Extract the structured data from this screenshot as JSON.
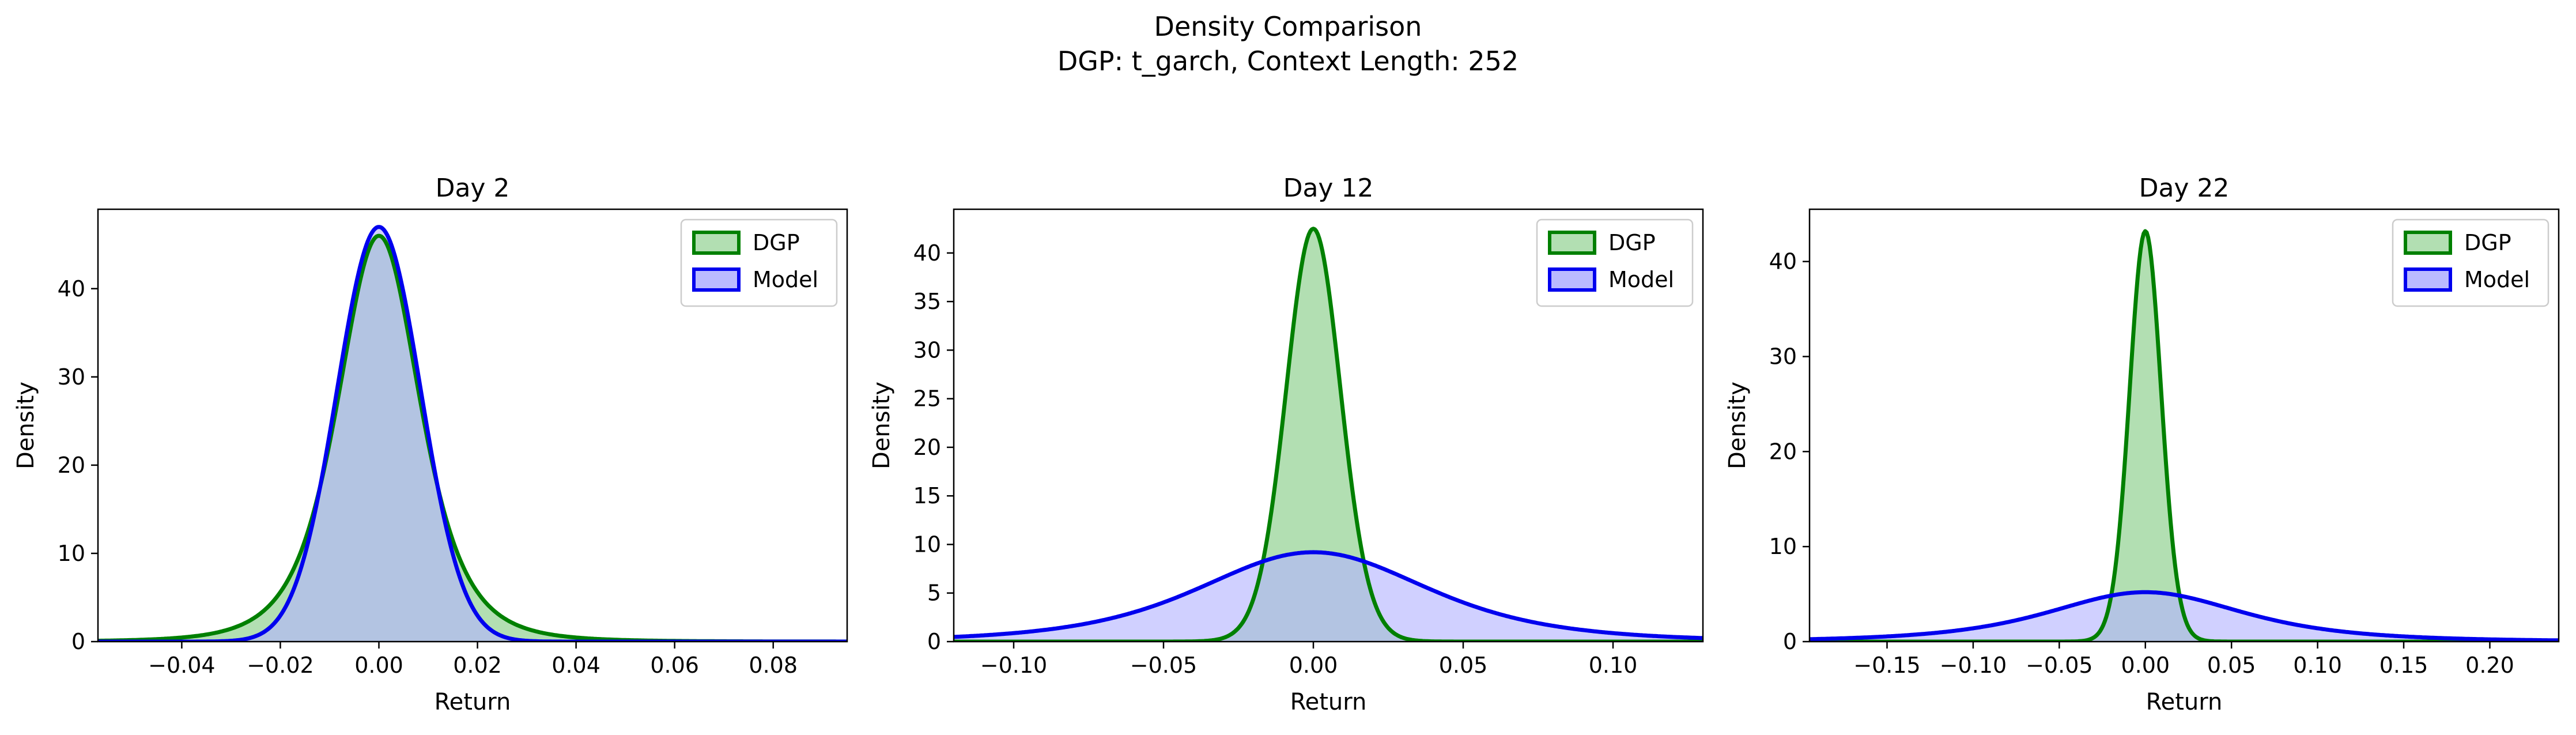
{
  "figure": {
    "title_line1": "Density Comparison",
    "title_line2": "DGP: t_garch, Context Length: 252"
  },
  "colors": {
    "dgp_line": "#008000",
    "dgp_fill": "#b2dfb2",
    "model_line": "#0000ee",
    "model_fill": "#b3b3ff",
    "overlap_fill": "#7f9ccc"
  },
  "chart_data": [
    {
      "type": "area",
      "title": "Day 2",
      "xlabel": "Return",
      "ylabel": "Density",
      "xlim": [
        -0.057,
        0.095
      ],
      "ylim": [
        0,
        49
      ],
      "xticks": [
        -0.04,
        -0.02,
        0.0,
        0.02,
        0.04,
        0.06,
        0.08
      ],
      "xtick_labels": [
        "−0.04",
        "−0.02",
        "0.00",
        "0.02",
        "0.04",
        "0.06",
        "0.08"
      ],
      "yticks": [
        0,
        10,
        20,
        30,
        40
      ],
      "legend": "top-right",
      "grid": false,
      "series": [
        {
          "name": "DGP",
          "color": "#008000",
          "mu": 0.0,
          "sigma": 0.0087,
          "dof": 4,
          "peak": 46.0
        },
        {
          "name": "Model",
          "color": "#0000ee",
          "mu": 0.0,
          "sigma": 0.0085,
          "dof": 0,
          "peak": 47.0
        }
      ]
    },
    {
      "type": "area",
      "title": "Day 12",
      "xlabel": "Return",
      "ylabel": "Density",
      "xlim": [
        -0.12,
        0.13
      ],
      "ylim": [
        0,
        44.5
      ],
      "xticks": [
        -0.1,
        -0.05,
        0.0,
        0.05,
        0.1
      ],
      "xtick_labels": [
        "−0.10",
        "−0.05",
        "0.00",
        "0.05",
        "0.10"
      ],
      "yticks": [
        0,
        5,
        10,
        15,
        20,
        25,
        30,
        35,
        40
      ],
      "legend": "top-right",
      "grid": false,
      "series": [
        {
          "name": "DGP",
          "color": "#008000",
          "mu": 0.0,
          "sigma": 0.0092,
          "dof": 30,
          "peak": 42.5
        },
        {
          "name": "Model",
          "color": "#0000ee",
          "mu": 0.0,
          "sigma": 0.04,
          "dof": 4,
          "peak": 9.2
        }
      ]
    },
    {
      "type": "area",
      "title": "Day 22",
      "xlabel": "Return",
      "ylabel": "Density",
      "xlim": [
        -0.195,
        0.24
      ],
      "ylim": [
        0,
        45.5
      ],
      "xticks": [
        -0.15,
        -0.1,
        -0.05,
        0.0,
        0.05,
        0.1,
        0.15,
        0.2
      ],
      "xtick_labels": [
        "−0.15",
        "−0.10",
        "−0.05",
        "0.00",
        "0.05",
        "0.10",
        "0.15",
        "0.20"
      ],
      "yticks": [
        0,
        10,
        20,
        30,
        40
      ],
      "legend": "top-right",
      "grid": false,
      "series": [
        {
          "name": "DGP",
          "color": "#008000",
          "mu": 0.0,
          "sigma": 0.0093,
          "dof": 30,
          "peak": 43.2
        },
        {
          "name": "Model",
          "color": "#0000ee",
          "mu": 0.0,
          "sigma": 0.06,
          "dof": 3,
          "peak": 5.2
        }
      ]
    }
  ]
}
